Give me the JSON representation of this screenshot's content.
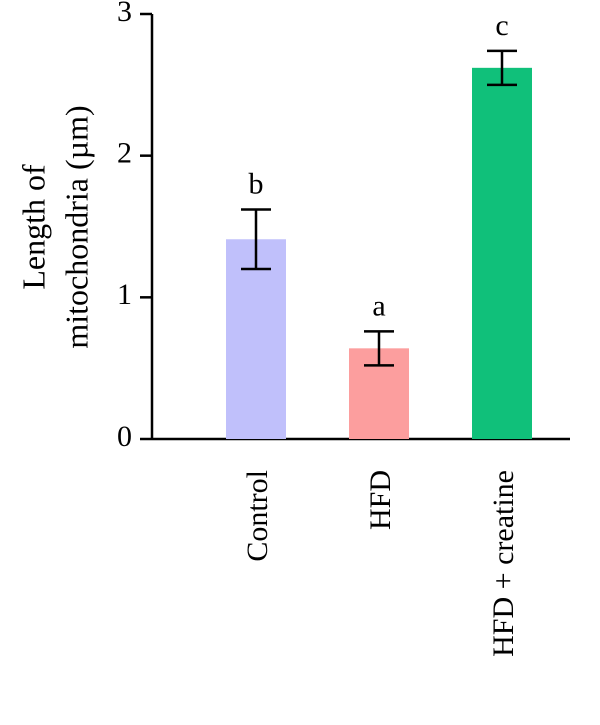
{
  "chart_data": {
    "type": "bar",
    "categories": [
      "Control",
      "HFD",
      "HFD + creatine"
    ],
    "values": [
      1.41,
      0.64,
      2.62
    ],
    "errors": [
      0.21,
      0.12,
      0.12
    ],
    "significance_letters": [
      "b",
      "a",
      "c"
    ],
    "colors": [
      "#c0c0fb",
      "#fc9e9e",
      "#10c07a"
    ],
    "ylabel_lines": [
      "Length of",
      "mitochondria (µm)"
    ],
    "ylim": [
      0,
      3
    ],
    "yticks": [
      0,
      1,
      2,
      3
    ],
    "ytick_labels": [
      "0",
      "1",
      "2",
      "3"
    ],
    "grid": false,
    "legend": "none"
  }
}
